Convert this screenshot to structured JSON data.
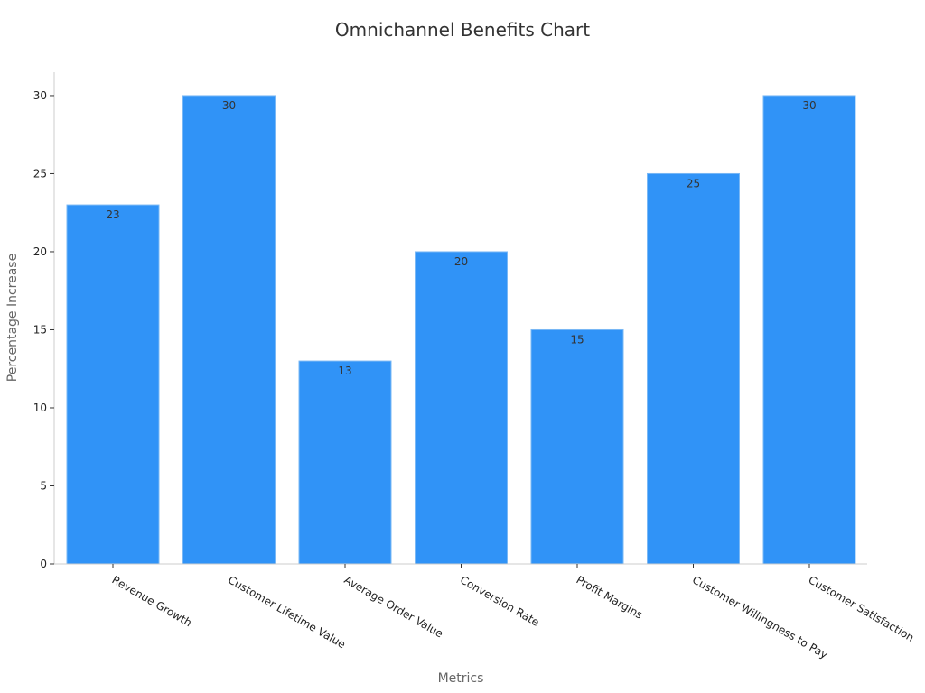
{
  "chart_data": {
    "type": "bar",
    "title": "Omnichannel Benefits Chart",
    "xlabel": "Metrics",
    "ylabel": "Percentage Increase",
    "categories": [
      "Revenue Growth",
      "Customer Lifetime Value",
      "Average Order Value",
      "Conversion Rate",
      "Profit Margins",
      "Customer Willingness to Pay",
      "Customer Satisfaction"
    ],
    "values": [
      23,
      30,
      13,
      20,
      15,
      25,
      30
    ],
    "ylim": [
      0,
      31.5
    ],
    "yticks": [
      0,
      5,
      10,
      15,
      20,
      25,
      30
    ],
    "grid": false,
    "legend": "none",
    "bar_color": "#3093f7",
    "bar_edge_color": "#7ab8f5"
  }
}
